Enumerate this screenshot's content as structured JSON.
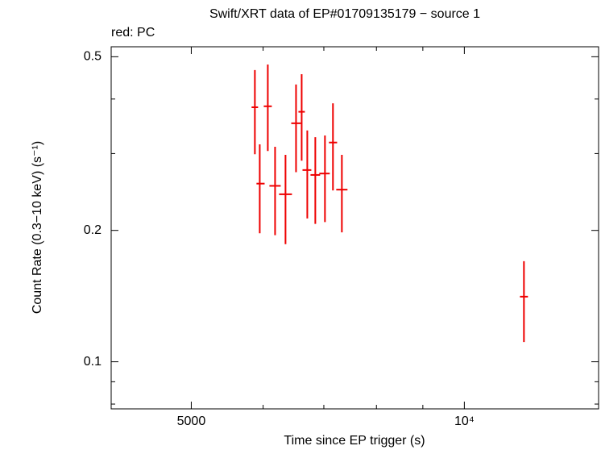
{
  "chart_data": {
    "type": "scatter",
    "title": "Swift/XRT data of EP#01709135179 − source 1",
    "subtitle": "red: PC",
    "x_label": "Time since EP trigger (s)",
    "y_label": "Count Rate (0.3−10 keV) (s⁻¹)",
    "log_x": true,
    "log_y": true,
    "xlim": [
      4080,
      14060
    ],
    "ylim": [
      0.078,
      0.527
    ],
    "xticks": [
      5000,
      {
        "value": 10000,
        "label": "10⁴"
      }
    ],
    "x_minor_ticks": [
      6000,
      7000,
      8000,
      9000
    ],
    "yticks": [
      0.1,
      0.2,
      0.5
    ],
    "y_minor_ticks": [
      0.08,
      0.09,
      0.3,
      0.4
    ],
    "series": [
      {
        "color": "#ee0000",
        "x": [
          5876,
          5949,
          6072,
          6185,
          6351,
          6523,
          6617,
          6712,
          6850,
          7020,
          7164,
          7328,
          11633
        ],
        "x_low": [
          5827,
          5900,
          6010,
          6097,
          6248,
          6444,
          6563,
          6631,
          6767,
          6920,
          7091,
          7224,
          11516
        ],
        "x_high": [
          5924,
          6023,
          6134,
          6274,
          6456,
          6603,
          6671,
          6781,
          6934,
          7106,
          7240,
          7433,
          11752
        ],
        "y": [
          0.383,
          0.256,
          0.385,
          0.253,
          0.242,
          0.352,
          0.374,
          0.275,
          0.268,
          0.27,
          0.318,
          0.248,
          0.141
        ],
        "y_low": [
          0.299,
          0.197,
          0.304,
          0.195,
          0.186,
          0.272,
          0.289,
          0.213,
          0.207,
          0.209,
          0.247,
          0.198,
          0.111
        ],
        "y_high": [
          0.466,
          0.315,
          0.48,
          0.311,
          0.298,
          0.432,
          0.456,
          0.339,
          0.327,
          0.33,
          0.391,
          0.298,
          0.17
        ]
      }
    ]
  }
}
